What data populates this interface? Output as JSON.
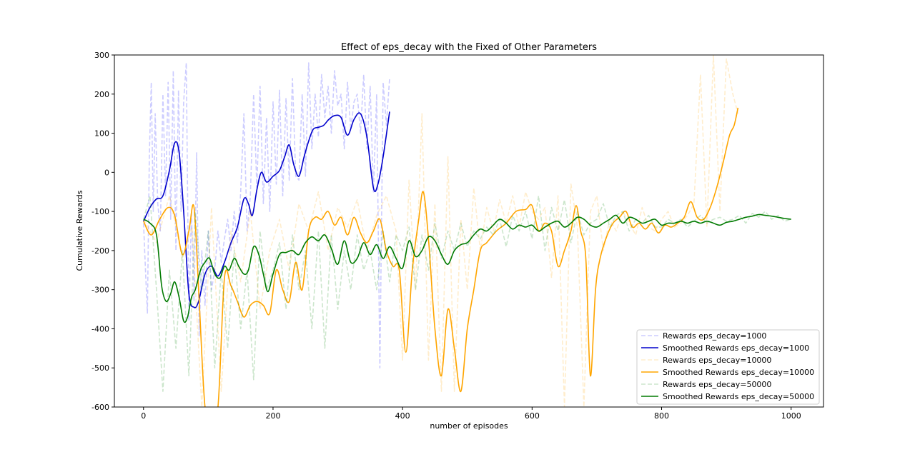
{
  "chart_data": {
    "type": "line",
    "title": "Effect of eps_decay with the Fixed of Other Parameters",
    "xlabel": "number of episodes",
    "ylabel": "Cumulative Rewards",
    "xlim": [
      -45,
      1050
    ],
    "ylim": [
      -600,
      300
    ],
    "xticks": [
      0,
      200,
      400,
      600,
      800,
      1000
    ],
    "yticks": [
      -600,
      -500,
      -400,
      -300,
      -200,
      -100,
      0,
      100,
      200,
      300
    ],
    "grid": false,
    "legend_position": "lower-right",
    "series": [
      {
        "name": "Rewards eps_decay=1000",
        "style": "dashed",
        "color": "#0000ff",
        "opacity": 0.2,
        "x": [
          0,
          3,
          6,
          9,
          12,
          15,
          18,
          22,
          26,
          30,
          34,
          38,
          42,
          46,
          50,
          54,
          58,
          62,
          66,
          70,
          74,
          78,
          82,
          86,
          90,
          95,
          100,
          105,
          110,
          115,
          120,
          125,
          130,
          135,
          140,
          145,
          150,
          155,
          160,
          165,
          170,
          175,
          180,
          185,
          190,
          195,
          200,
          205,
          210,
          215,
          220,
          225,
          230,
          235,
          240,
          245,
          250,
          255,
          260,
          265,
          270,
          275,
          280,
          285,
          290,
          295,
          300,
          305,
          310,
          315,
          320,
          325,
          330,
          335,
          340,
          345,
          350,
          355,
          360,
          365,
          370,
          375,
          380
        ],
        "y": [
          -130,
          -250,
          -360,
          40,
          230,
          -100,
          150,
          -80,
          -150,
          200,
          -60,
          230,
          -120,
          260,
          -200,
          210,
          -100,
          180,
          280,
          -380,
          -100,
          -330,
          50,
          -420,
          -200,
          -340,
          -150,
          -300,
          -250,
          -150,
          -230,
          -170,
          -120,
          -200,
          -100,
          -180,
          -50,
          150,
          -150,
          -60,
          200,
          -40,
          220,
          -80,
          140,
          -100,
          180,
          -30,
          210,
          -60,
          190,
          -20,
          240,
          -10,
          -20,
          200,
          -10,
          280,
          60,
          200,
          90,
          250,
          140,
          220,
          100,
          260,
          170,
          200,
          60,
          230,
          110,
          180,
          200,
          100,
          250,
          60,
          220,
          -50,
          200,
          -500,
          230,
          120,
          240
        ]
      },
      {
        "name": "Smoothed Rewards eps_decay=1000",
        "style": "solid",
        "color": "#0000cc",
        "opacity": 1,
        "x": [
          0,
          10,
          20,
          30,
          40,
          48,
          55,
          62,
          70,
          78,
          85,
          95,
          105,
          115,
          125,
          135,
          145,
          155,
          162,
          168,
          175,
          182,
          190,
          200,
          210,
          218,
          225,
          232,
          240,
          248,
          255,
          262,
          270,
          278,
          286,
          295,
          305,
          315,
          325,
          335,
          345,
          355,
          362,
          370,
          380
        ],
        "y": [
          -125,
          -90,
          -68,
          -60,
          5,
          75,
          50,
          -100,
          -310,
          -345,
          -330,
          -260,
          -240,
          -265,
          -230,
          -180,
          -140,
          -68,
          -80,
          -110,
          -45,
          0,
          -25,
          -10,
          5,
          40,
          70,
          20,
          -10,
          40,
          80,
          110,
          115,
          120,
          135,
          145,
          140,
          95,
          135,
          150,
          90,
          -40,
          -30,
          40,
          155
        ]
      },
      {
        "name": "Rewards eps_decay=10000",
        "style": "dashed",
        "color": "#ffa500",
        "opacity": 0.2,
        "x": [
          0,
          20,
          40,
          60,
          75,
          90,
          105,
          120,
          135,
          150,
          165,
          180,
          195,
          210,
          225,
          240,
          255,
          270,
          285,
          300,
          315,
          330,
          345,
          360,
          375,
          390,
          400,
          410,
          420,
          430,
          440,
          450,
          460,
          470,
          480,
          490,
          500,
          510,
          520,
          530,
          540,
          550,
          560,
          570,
          580,
          590,
          600,
          610,
          620,
          630,
          640,
          650,
          660,
          670,
          680,
          690,
          700,
          710,
          720,
          730,
          740,
          750,
          760,
          770,
          780,
          790,
          800,
          810,
          820,
          830,
          840,
          850,
          860,
          870,
          880,
          890,
          900,
          910,
          918
        ],
        "y": [
          -120,
          -180,
          -60,
          -220,
          -140,
          -600,
          -90,
          -560,
          -150,
          -280,
          -100,
          -350,
          -200,
          -120,
          -250,
          -80,
          -150,
          -50,
          -200,
          -90,
          -140,
          -70,
          -200,
          -110,
          -60,
          -150,
          -480,
          -20,
          -300,
          150,
          -480,
          -80,
          -560,
          40,
          -560,
          -120,
          -300,
          -40,
          -200,
          -90,
          -150,
          -70,
          -130,
          -60,
          -140,
          -50,
          -100,
          -120,
          -90,
          -270,
          -60,
          -600,
          -30,
          -140,
          -600,
          -100,
          -60,
          -200,
          -120,
          -150,
          -100,
          -130,
          -160,
          -90,
          -140,
          -150,
          -120,
          -100,
          -140,
          -130,
          -110,
          -80,
          250,
          -140,
          300,
          -100,
          290,
          200,
          150
        ]
      },
      {
        "name": "Smoothed Rewards eps_decay=10000",
        "style": "solid",
        "color": "#ffa500",
        "opacity": 1,
        "x": [
          0,
          12,
          25,
          38,
          48,
          60,
          70,
          78,
          86,
          95,
          105,
          115,
          125,
          135,
          145,
          155,
          165,
          175,
          185,
          195,
          205,
          215,
          225,
          235,
          245,
          255,
          265,
          275,
          285,
          295,
          305,
          315,
          325,
          335,
          345,
          355,
          365,
          375,
          385,
          395,
          405,
          415,
          425,
          432,
          440,
          450,
          460,
          470,
          480,
          490,
          500,
          510,
          520,
          530,
          545,
          560,
          575,
          590,
          600,
          610,
          620,
          630,
          640,
          650,
          660,
          668,
          675,
          683,
          690,
          698,
          705,
          715,
          725,
          735,
          745,
          755,
          765,
          775,
          785,
          795,
          805,
          815,
          825,
          835,
          845,
          855,
          865,
          875,
          885,
          895,
          905,
          912,
          918
        ],
        "y": [
          -125,
          -160,
          -120,
          -90,
          -110,
          -210,
          -150,
          -90,
          -330,
          -600,
          -620,
          -600,
          -270,
          -290,
          -330,
          -370,
          -340,
          -330,
          -340,
          -360,
          -250,
          -300,
          -330,
          -230,
          -300,
          -150,
          -115,
          -120,
          -100,
          -135,
          -115,
          -160,
          -115,
          -155,
          -180,
          -150,
          -120,
          -200,
          -240,
          -250,
          -460,
          -250,
          -120,
          -50,
          -170,
          -400,
          -520,
          -350,
          -450,
          -560,
          -400,
          -300,
          -200,
          -180,
          -150,
          -130,
          -100,
          -95,
          -85,
          -150,
          -130,
          -150,
          -240,
          -200,
          -150,
          -85,
          -150,
          -220,
          -520,
          -300,
          -220,
          -165,
          -130,
          -115,
          -100,
          -140,
          -130,
          -145,
          -130,
          -155,
          -135,
          -140,
          -130,
          -115,
          -75,
          -115,
          -120,
          -90,
          -40,
          25,
          95,
          120,
          165
        ]
      },
      {
        "name": "Rewards eps_decay=50000",
        "style": "dashed",
        "color": "#008000",
        "opacity": 0.2,
        "x": [
          0,
          10,
          20,
          30,
          40,
          50,
          60,
          70,
          80,
          90,
          100,
          110,
          120,
          130,
          140,
          150,
          160,
          170,
          180,
          190,
          200,
          210,
          220,
          230,
          240,
          250,
          260,
          270,
          280,
          290,
          300,
          310,
          320,
          330,
          340,
          350,
          360,
          370,
          380,
          390,
          400,
          410,
          420,
          430,
          440,
          450,
          460,
          470,
          480,
          490,
          500,
          510,
          520,
          530,
          540,
          550,
          560,
          570,
          580,
          590,
          600,
          610,
          620,
          630,
          640,
          650,
          660,
          670,
          680,
          690,
          700,
          710,
          720,
          730,
          740,
          750,
          760,
          770,
          780,
          790,
          800,
          810,
          820,
          830,
          840,
          850,
          860,
          870,
          880,
          890,
          900,
          910,
          920,
          930,
          940,
          950,
          960,
          970,
          980,
          990,
          1000
        ],
        "y": [
          -120,
          -60,
          -300,
          -560,
          -250,
          -450,
          -200,
          -520,
          -100,
          -300,
          -150,
          -500,
          -250,
          -450,
          -200,
          -400,
          -250,
          -530,
          -150,
          -300,
          -250,
          -180,
          -350,
          -160,
          -300,
          -200,
          -400,
          -150,
          -450,
          -160,
          -350,
          -200,
          -300,
          -160,
          -250,
          -200,
          -300,
          -150,
          -280,
          -160,
          -200,
          -140,
          -300,
          -160,
          -250,
          -130,
          -220,
          -150,
          -200,
          -130,
          -190,
          -150,
          -170,
          -140,
          -160,
          -120,
          -190,
          -110,
          -150,
          -100,
          -170,
          -60,
          -200,
          -90,
          -150,
          -70,
          -180,
          -100,
          -160,
          -130,
          -120,
          -80,
          -140,
          -110,
          -100,
          -150,
          -120,
          -130,
          -110,
          -140,
          -140,
          -120,
          -130,
          -120,
          -140,
          -125,
          -110,
          -130,
          -120,
          -115,
          -125,
          -120,
          -110,
          -130,
          -105,
          -115,
          -100,
          -120,
          -110,
          -125,
          -120
        ]
      },
      {
        "name": "Smoothed Rewards eps_decay=50000",
        "style": "solid",
        "color": "#007a00",
        "opacity": 1,
        "x": [
          0,
          10,
          20,
          28,
          35,
          42,
          48,
          55,
          62,
          68,
          74,
          80,
          88,
          95,
          102,
          110,
          118,
          125,
          132,
          140,
          147,
          155,
          162,
          170,
          178,
          185,
          192,
          200,
          210,
          220,
          230,
          240,
          250,
          260,
          270,
          280,
          290,
          300,
          310,
          320,
          330,
          340,
          350,
          360,
          370,
          380,
          390,
          400,
          410,
          420,
          430,
          440,
          450,
          460,
          470,
          480,
          490,
          500,
          510,
          520,
          530,
          540,
          550,
          560,
          570,
          580,
          590,
          600,
          610,
          620,
          630,
          640,
          650,
          660,
          670,
          680,
          690,
          700,
          710,
          720,
          730,
          740,
          750,
          760,
          770,
          780,
          790,
          800,
          810,
          820,
          830,
          840,
          850,
          860,
          870,
          880,
          890,
          900,
          910,
          920,
          930,
          940,
          950,
          960,
          970,
          980,
          990,
          1000
        ],
        "y": [
          -120,
          -130,
          -160,
          -290,
          -330,
          -310,
          -280,
          -320,
          -380,
          -370,
          -320,
          -300,
          -250,
          -230,
          -220,
          -260,
          -270,
          -240,
          -250,
          -220,
          -240,
          -260,
          -250,
          -190,
          -210,
          -260,
          -305,
          -260,
          -210,
          -205,
          -200,
          -210,
          -180,
          -165,
          -175,
          -160,
          -195,
          -235,
          -175,
          -230,
          -220,
          -180,
          -210,
          -185,
          -220,
          -190,
          -220,
          -245,
          -175,
          -215,
          -200,
          -165,
          -175,
          -210,
          -235,
          -200,
          -185,
          -180,
          -160,
          -145,
          -150,
          -135,
          -120,
          -130,
          -145,
          -135,
          -140,
          -135,
          -150,
          -140,
          -130,
          -125,
          -140,
          -130,
          -115,
          -120,
          -135,
          -140,
          -130,
          -120,
          -110,
          -130,
          -115,
          -120,
          -130,
          -125,
          -120,
          -135,
          -130,
          -130,
          -125,
          -130,
          -125,
          -130,
          -125,
          -130,
          -135,
          -128,
          -125,
          -120,
          -115,
          -112,
          -108,
          -110,
          -112,
          -115,
          -118,
          -120
        ]
      }
    ]
  }
}
